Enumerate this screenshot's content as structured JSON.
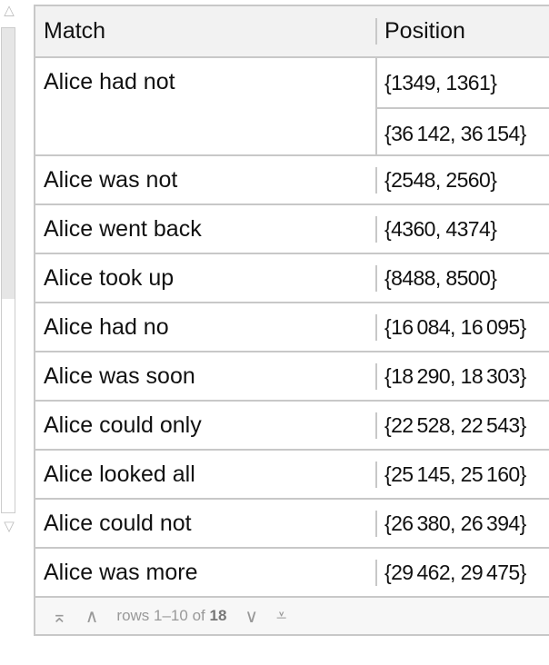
{
  "table": {
    "headers": [
      "Match",
      "Position"
    ],
    "rows": [
      {
        "match": "Alice had not",
        "positions": [
          "{1349, 1361}",
          "{36 142, 36 154}"
        ]
      },
      {
        "match": "Alice was not",
        "positions": [
          "{2548, 2560}"
        ]
      },
      {
        "match": "Alice went back",
        "positions": [
          "{4360, 4374}"
        ]
      },
      {
        "match": "Alice took up",
        "positions": [
          "{8488, 8500}"
        ]
      },
      {
        "match": "Alice had no",
        "positions": [
          "{16 084, 16 095}"
        ]
      },
      {
        "match": "Alice was soon",
        "positions": [
          "{18 290, 18 303}"
        ]
      },
      {
        "match": "Alice could only",
        "positions": [
          "{22 528, 22 543}"
        ]
      },
      {
        "match": "Alice looked all",
        "positions": [
          "{25 145, 25 160}"
        ]
      },
      {
        "match": "Alice could not",
        "positions": [
          "{26 380, 26 394}"
        ]
      },
      {
        "match": "Alice was more",
        "positions": [
          "{29 462, 29 475}"
        ]
      }
    ]
  },
  "footer": {
    "rows_text": "rows 1–10 of",
    "total": "18",
    "icons": [
      "first-page-icon",
      "previous-page-icon",
      "next-page-icon",
      "last-page-icon"
    ]
  },
  "scrollbar": {
    "position_fraction": 0
  }
}
